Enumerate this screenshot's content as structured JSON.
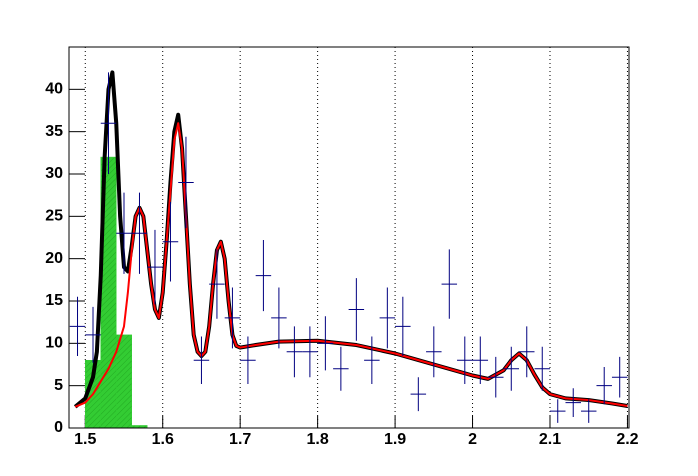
{
  "chart_data": {
    "type": "combo",
    "xlim": [
      1.479,
      2.202
    ],
    "ylim": [
      0,
      45
    ],
    "xticks": [
      1.5,
      1.6,
      1.7,
      1.8,
      1.9,
      2,
      2.1,
      2.2
    ],
    "yticks": [
      0,
      5,
      10,
      15,
      20,
      25,
      30,
      35,
      40
    ],
    "grid_x": true,
    "histogram": {
      "color": "#33cc33",
      "bins": [
        1.5,
        1.52,
        1.54,
        1.56,
        1.58
      ],
      "counts": [
        8,
        32,
        11,
        0.3
      ]
    },
    "series": [
      {
        "color": "#000000",
        "x": [
          1.487,
          1.5,
          1.51,
          1.515,
          1.52,
          1.525,
          1.53,
          1.535,
          1.54,
          1.545,
          1.55,
          1.555,
          1.56,
          1.565,
          1.57,
          1.575,
          1.58,
          1.585,
          1.59,
          1.595,
          1.6,
          1.605,
          1.61,
          1.615,
          1.62,
          1.625,
          1.63,
          1.635,
          1.64,
          1.645,
          1.65,
          1.655,
          1.66,
          1.665,
          1.67,
          1.675,
          1.68,
          1.685,
          1.69,
          1.695,
          1.7,
          1.72,
          1.75,
          1.8,
          1.85,
          1.9,
          1.95,
          2.0,
          2.02,
          2.04,
          2.05,
          2.06,
          2.07,
          2.08,
          2.09,
          2.1,
          2.12,
          2.15,
          2.18,
          2.2
        ],
        "values": [
          2.5,
          3.5,
          6,
          9,
          18,
          32,
          40,
          42,
          36,
          25,
          19,
          18.5,
          21.5,
          25,
          26,
          25,
          21,
          17,
          14,
          13,
          16,
          22,
          29,
          35,
          37,
          33,
          25,
          17,
          11,
          9,
          8.5,
          9,
          12,
          17,
          21,
          22,
          20,
          15,
          11,
          9.7,
          9.5,
          9.8,
          10.2,
          10.3,
          9.8,
          8.8,
          7.5,
          6.2,
          5.8,
          6.8,
          8,
          8.8,
          8,
          6.3,
          4.8,
          4,
          3.5,
          3.3,
          2.9,
          2.6
        ]
      },
      {
        "color": "#ff0000",
        "x": [
          1.487,
          1.5,
          1.51,
          1.52,
          1.53,
          1.54,
          1.55,
          1.555,
          1.56,
          1.565,
          1.57,
          1.575,
          1.58,
          1.585,
          1.59,
          1.595,
          1.6,
          1.605,
          1.61,
          1.615,
          1.62,
          1.625,
          1.63,
          1.635,
          1.64,
          1.645,
          1.65,
          1.655,
          1.66,
          1.665,
          1.67,
          1.675,
          1.68,
          1.685,
          1.69,
          1.695,
          1.7,
          1.72,
          1.75,
          1.8,
          1.85,
          1.9,
          1.95,
          2.0,
          2.02,
          2.04,
          2.05,
          2.06,
          2.07,
          2.08,
          2.09,
          2.1,
          2.12,
          2.15,
          2.18,
          2.2
        ],
        "values": [
          2.5,
          3,
          4,
          5.5,
          7,
          9,
          12,
          16,
          21,
          25,
          26,
          25,
          21,
          17,
          14,
          13,
          16,
          22,
          28,
          34,
          36,
          33,
          25,
          17,
          11,
          9,
          8.5,
          9,
          12,
          17,
          21,
          22,
          20,
          15,
          11,
          9.7,
          9.5,
          9.8,
          10.2,
          10.3,
          9.8,
          8.8,
          7.5,
          6.2,
          5.8,
          6.8,
          8,
          8.8,
          8,
          6.3,
          4.8,
          4,
          3.5,
          3.3,
          2.9,
          2.6
        ]
      }
    ],
    "points": {
      "color": "#000080",
      "x": [
        1.49,
        1.51,
        1.53,
        1.55,
        1.57,
        1.59,
        1.61,
        1.63,
        1.65,
        1.67,
        1.69,
        1.71,
        1.73,
        1.75,
        1.77,
        1.79,
        1.81,
        1.83,
        1.85,
        1.87,
        1.89,
        1.91,
        1.93,
        1.95,
        1.97,
        1.99,
        2.01,
        2.03,
        2.05,
        2.07,
        2.09,
        2.11,
        2.13,
        2.15,
        2.17,
        2.19
      ],
      "values": [
        12,
        11,
        36,
        23,
        23,
        19,
        22,
        29,
        8,
        17,
        13,
        8,
        18,
        13,
        9,
        9,
        10,
        7,
        14,
        8,
        13,
        12,
        4,
        9,
        17,
        8,
        8,
        6,
        7,
        9,
        7,
        2,
        3,
        2,
        5,
        6
      ],
      "errors": [
        3.5,
        3.3,
        6,
        4.8,
        4.8,
        4.4,
        4.7,
        5.4,
        2.8,
        4.1,
        3.6,
        2.8,
        4.2,
        3.6,
        3,
        3,
        3.2,
        2.6,
        3.7,
        2.8,
        3.6,
        3.5,
        2,
        3,
        4.1,
        2.8,
        2.8,
        2.4,
        2.6,
        3,
        2.6,
        1.4,
        1.7,
        1.4,
        2.2,
        2.4
      ]
    }
  }
}
